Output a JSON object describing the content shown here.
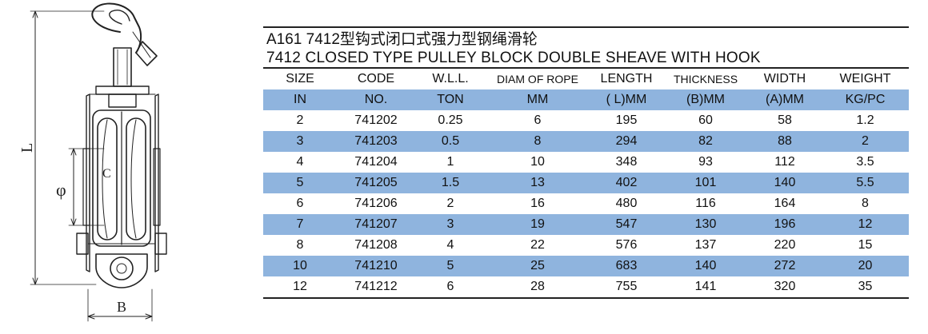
{
  "drawing": {
    "labels": {
      "length": "L",
      "diameter": "φ",
      "sheave": "C",
      "thickness": "B"
    }
  },
  "spec": {
    "title_cn": "A161 7412型钩式闭口式强力型钢绳滑轮",
    "title_en": "7412 CLOSED TYPE PULLEY BLOCK DOUBLE SHEAVE WITH HOOK",
    "header_row1": [
      "SIZE",
      "CODE",
      "W.L.L.",
      "DIAM OF ROPE",
      "LENGTH",
      "THICKNESS",
      "WIDTH",
      "WEIGHT"
    ],
    "header_row2": [
      "IN",
      "NO.",
      "TON",
      "MM",
      "( L)MM",
      "(B)MM",
      "(A)MM",
      "KG/PC"
    ],
    "rows": [
      [
        "2",
        "741202",
        "0.25",
        "6",
        "195",
        "60",
        "58",
        "1.2"
      ],
      [
        "3",
        "741203",
        "0.5",
        "8",
        "294",
        "82",
        "88",
        "2"
      ],
      [
        "4",
        "741204",
        "1",
        "10",
        "348",
        "93",
        "112",
        "3.5"
      ],
      [
        "5",
        "741205",
        "1.5",
        "13",
        "402",
        "101",
        "140",
        "5.5"
      ],
      [
        "6",
        "741206",
        "2",
        "16",
        "480",
        "116",
        "164",
        "8"
      ],
      [
        "7",
        "741207",
        "3",
        "19",
        "547",
        "130",
        "196",
        "12"
      ],
      [
        "8",
        "741208",
        "4",
        "22",
        "576",
        "137",
        "220",
        "15"
      ],
      [
        "10",
        "741210",
        "5",
        "25",
        "683",
        "140",
        "272",
        "20"
      ],
      [
        "12",
        "741212",
        "6",
        "28",
        "755",
        "141",
        "320",
        "35"
      ]
    ],
    "band_color": "#8fb4de"
  }
}
